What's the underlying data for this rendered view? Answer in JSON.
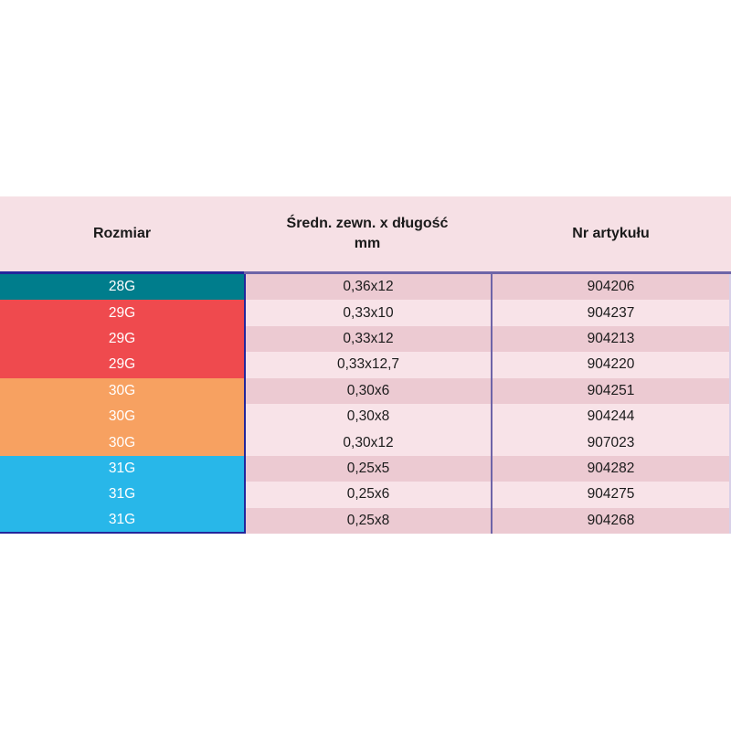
{
  "table": {
    "columns": [
      {
        "id": "size",
        "label": "Rozmiar"
      },
      {
        "id": "dimensions",
        "label": "Średn. zewn. x długość",
        "label_line2": "mm"
      },
      {
        "id": "article",
        "label": "Nr artykułu"
      }
    ],
    "rows": [
      {
        "size": "28G",
        "dimensions": "0,36x12",
        "article": "904206",
        "group_color": "#007d8c",
        "band": "dark"
      },
      {
        "size": "29G",
        "dimensions": "0,33x10",
        "article": "904237",
        "group_color": "#ef4a4e",
        "band": "light"
      },
      {
        "size": "29G",
        "dimensions": "0,33x12",
        "article": "904213",
        "group_color": "#ef4a4e",
        "band": "dark"
      },
      {
        "size": "29G",
        "dimensions": "0,33x12,7",
        "article": "904220",
        "group_color": "#ef4a4e",
        "band": "light"
      },
      {
        "size": "30G",
        "dimensions": "0,30x6",
        "article": "904251",
        "group_color": "#f7a161",
        "band": "dark"
      },
      {
        "size": "30G",
        "dimensions": "0,30x8",
        "article": "904244",
        "group_color": "#f7a161",
        "band": "light"
      },
      {
        "size": "30G",
        "dimensions": "0,30x12",
        "article": "907023",
        "group_color": "#f7a161",
        "band": "light"
      },
      {
        "size": "31G",
        "dimensions": "0,25x5",
        "article": "904282",
        "group_color": "#28b7e9",
        "band": "dark"
      },
      {
        "size": "31G",
        "dimensions": "0,25x6",
        "article": "904275",
        "group_color": "#28b7e9",
        "band": "light"
      },
      {
        "size": "31G",
        "dimensions": "0,25x8",
        "article": "904268",
        "group_color": "#28b7e9",
        "band": "dark"
      }
    ],
    "palette": {
      "header_bg": "#f6e0e5",
      "band_dark": "#eccad2",
      "band_light": "#f8e3e8",
      "header_rule": "#6e64a8",
      "divider_col1": "#23279b",
      "divider_col2": "#6e64a8",
      "right_edge": "#d8d0e8",
      "text_dark": "#1b1b1b",
      "text_light": "#ffffff",
      "page_bg": "#ffffff"
    }
  }
}
